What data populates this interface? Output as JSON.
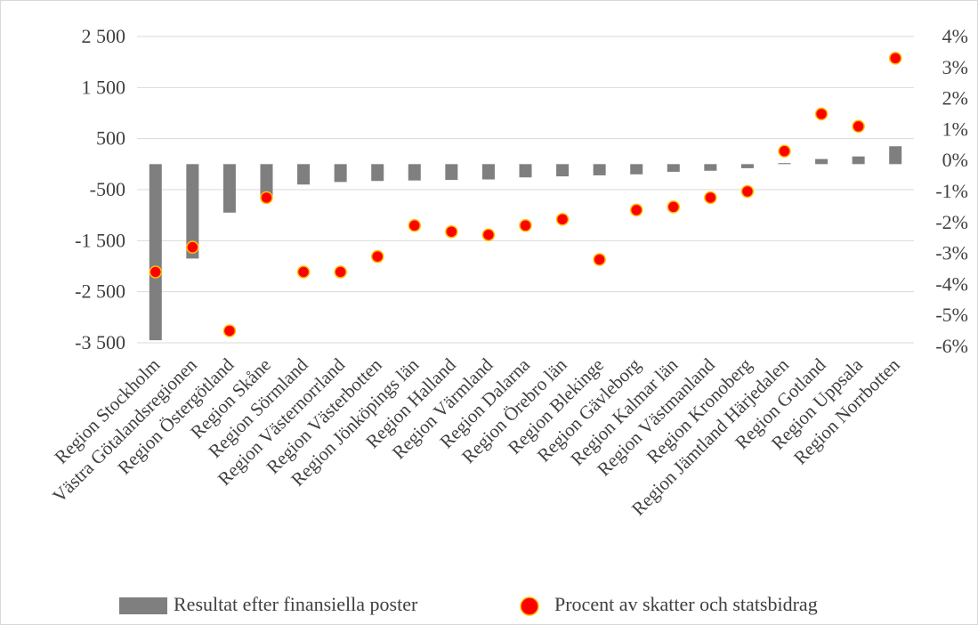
{
  "chart_data": {
    "type": "bar",
    "categories": [
      "Region Stockholm",
      "Västra Götalandsregionen",
      "Region Östergötland",
      "Region Skåne",
      "Region Sörmland",
      "Region Västernorrland",
      "Region Västerbotten",
      "Region Jönköpings län",
      "Region Halland",
      "Region Värmland",
      "Region Dalarna",
      "Region Örebro län",
      "Region Blekinge",
      "Region Gävleborg",
      "Region Kalmar län",
      "Region Västmanland",
      "Region Kronoberg",
      "Region Jämtland Härjedalen",
      "Region Gotland",
      "Region Uppsala",
      "Region Norrbotten"
    ],
    "series": [
      {
        "name": "Resultat efter finansiella poster",
        "type": "bar",
        "axis": "left",
        "color": "#7f7f7f",
        "values": [
          -3450,
          -1850,
          -950,
          -650,
          -400,
          -350,
          -330,
          -320,
          -310,
          -300,
          -260,
          -240,
          -220,
          -200,
          -150,
          -130,
          -80,
          20,
          100,
          150,
          350
        ]
      },
      {
        "name": "Procent av skatter och statsbidrag",
        "type": "scatter",
        "axis": "right",
        "color": "#ff0000",
        "edge_color": "#ffc000",
        "values": [
          -3.6,
          -2.8,
          -5.5,
          -1.2,
          -3.6,
          -3.6,
          -3.1,
          -2.1,
          -2.3,
          -2.4,
          -2.1,
          -1.9,
          -3.2,
          -1.6,
          -1.5,
          -1.2,
          -1.0,
          0.3,
          1.5,
          1.1,
          3.3
        ]
      }
    ],
    "y_left": {
      "ticks": [
        2500,
        1500,
        500,
        -500,
        -1500,
        -2500,
        -3500
      ],
      "tick_labels": [
        "2 500",
        "1 500",
        "500",
        "-500",
        "-1 500",
        "-2 500",
        "-3 500"
      ],
      "ylim": [
        -3500,
        2500
      ]
    },
    "y_right": {
      "ticks": [
        4,
        3,
        2,
        1,
        0,
        -1,
        -2,
        -3,
        -4,
        -5,
        -6
      ],
      "tick_labels": [
        "4%",
        "3%",
        "2%",
        "1%",
        "0%",
        "-1%",
        "-2%",
        "-3%",
        "-4%",
        "-5%",
        "-6%"
      ],
      "ylim": [
        -6,
        4
      ]
    },
    "grid": true,
    "legend_position": "bottom",
    "legend": [
      "Resultat efter finansiella poster",
      "Procent av skatter och statsbidrag"
    ],
    "title": "",
    "xlabel": "",
    "ylabel": ""
  }
}
